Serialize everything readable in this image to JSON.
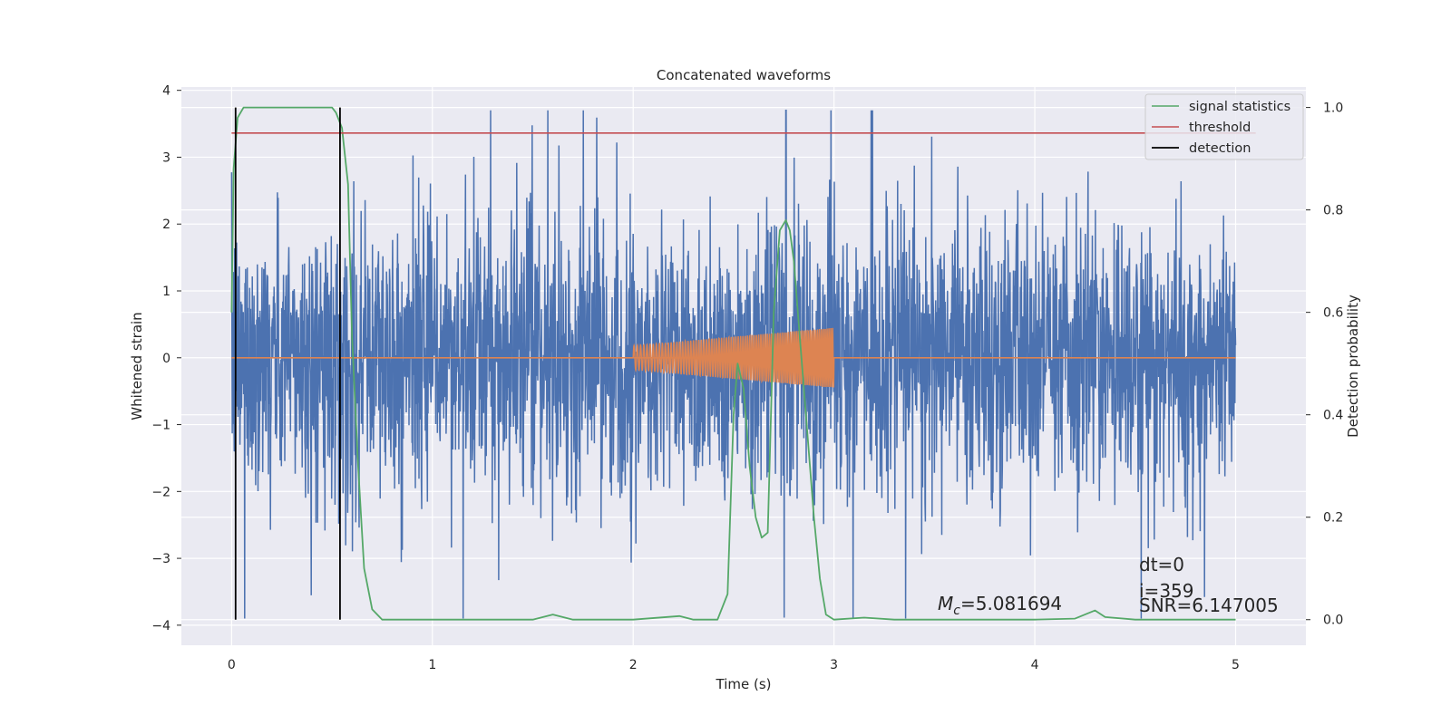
{
  "chart_data": {
    "type": "line",
    "title": "Concatenated waveforms",
    "xlabel": "Time (s)",
    "ylabel_left": "Whitened strain",
    "ylabel_right": "Detection probability",
    "xlim": [
      -0.25,
      5.35
    ],
    "ylim_left": [
      -4.3,
      4.05
    ],
    "ylim_right": [
      -0.05,
      1.04
    ],
    "x_ticks": [
      0,
      1,
      2,
      3,
      4,
      5
    ],
    "x_tick_labels": [
      "0",
      "1",
      "2",
      "3",
      "4",
      "5"
    ],
    "y_left_ticks": [
      -4,
      -3,
      -2,
      -1,
      0,
      1,
      2,
      3,
      4
    ],
    "y_left_tick_labels": [
      "−4",
      "−3",
      "−2",
      "−1",
      "0",
      "1",
      "2",
      "3",
      "4"
    ],
    "y_right_ticks": [
      0.0,
      0.2,
      0.4,
      0.6,
      0.8,
      1.0
    ],
    "y_right_tick_labels": [
      "0.0",
      "0.2",
      "0.4",
      "0.6",
      "0.8",
      "1.0"
    ],
    "grid": true,
    "legend_position": "top-right",
    "legend": [
      {
        "label": "signal statistics",
        "color": "#55a868"
      },
      {
        "label": "threshold",
        "color": "#c44e52"
      },
      {
        "label": "detection",
        "color": "#000000"
      }
    ],
    "series": [
      {
        "role": "noisy strain",
        "axis": "left",
        "color": "#4c72b0",
        "x_range": [
          0,
          5
        ],
        "typical_amplitude": 1.0,
        "peak_range": [
          -3.9,
          3.7
        ]
      },
      {
        "role": "injected waveform",
        "axis": "left",
        "color": "#dd8452",
        "segment_x": [
          2,
          3
        ],
        "amplitude_start": 0.18,
        "amplitude_end": 0.45
      },
      {
        "name": "signal statistics",
        "axis": "right",
        "color": "#55a868",
        "x": [
          0,
          0.01,
          0.03,
          0.06,
          0.1,
          0.2,
          0.4,
          0.5,
          0.52,
          0.55,
          0.58,
          0.6,
          0.63,
          0.66,
          0.7,
          0.75,
          0.9,
          1.2,
          1.5,
          1.6,
          1.7,
          2.0,
          2.23,
          2.3,
          2.42,
          2.47,
          2.5,
          2.52,
          2.55,
          2.58,
          2.61,
          2.64,
          2.67,
          2.7,
          2.73,
          2.76,
          2.78,
          2.8,
          2.83,
          2.87,
          2.9,
          2.93,
          2.96,
          3.0,
          3.15,
          3.3,
          3.6,
          4.0,
          4.2,
          4.3,
          4.35,
          4.5,
          5.0
        ],
        "y": [
          0.6,
          0.88,
          0.98,
          1.0,
          1.0,
          1.0,
          1.0,
          1.0,
          0.99,
          0.96,
          0.85,
          0.55,
          0.3,
          0.1,
          0.02,
          0.0,
          0.0,
          0.0,
          0.0,
          0.01,
          0.0,
          0.0,
          0.007,
          0.0,
          0.0,
          0.05,
          0.4,
          0.5,
          0.45,
          0.3,
          0.2,
          0.16,
          0.17,
          0.6,
          0.76,
          0.78,
          0.76,
          0.7,
          0.55,
          0.35,
          0.2,
          0.08,
          0.01,
          0.0,
          0.004,
          0.0,
          0.0,
          0.0,
          0.002,
          0.018,
          0.005,
          0.0,
          0.0
        ]
      },
      {
        "name": "threshold",
        "axis": "right",
        "color": "#c44e52",
        "x": [
          0,
          5.1
        ],
        "y": [
          0.95,
          0.95
        ]
      },
      {
        "name": "detection",
        "axis": "right",
        "color": "#000000",
        "x": [
          0.02,
          0.54
        ]
      }
    ],
    "annotations": {
      "mc_symbol": "M",
      "mc_subscript": "c",
      "mc_value": "=5.081694",
      "dt": "dt=0",
      "i": "i=359",
      "snr": "SNR=6.147005"
    }
  }
}
